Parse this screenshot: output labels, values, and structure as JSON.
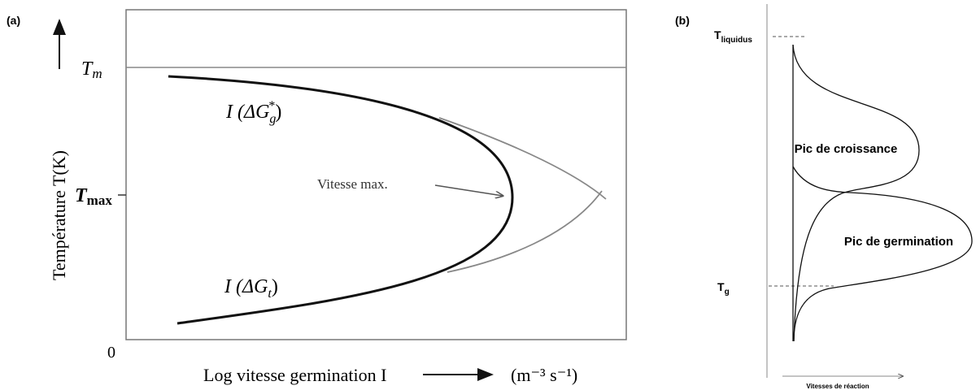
{
  "panel_a": {
    "label": "(a)",
    "y_axis_label": "Température T(K)",
    "tm": {
      "main": "T",
      "sub": "m"
    },
    "tmax": {
      "main": "T",
      "sub": "max"
    },
    "origin": "0",
    "x_axis_label": "Log vitesse germination I",
    "x_axis_unit": "(m⁻³ s⁻¹)",
    "curve_top": {
      "prefix": "I (ΔG",
      "sup": "*",
      "sub": "g",
      "suffix": ")"
    },
    "curve_bottom": {
      "prefix": "I (ΔG",
      "sub": "t",
      "suffix": ")"
    },
    "annotation": "Vitesse max."
  },
  "panel_b": {
    "label": "(b)",
    "t_liquidus": {
      "main": "T",
      "sub": "liquidus"
    },
    "t_g": {
      "main": "T",
      "sub": "g"
    },
    "growth_peak": "Pic de croissance",
    "nucleation_peak": "Pic de germination",
    "x_axis_label": "Vitesses de réaction"
  }
}
